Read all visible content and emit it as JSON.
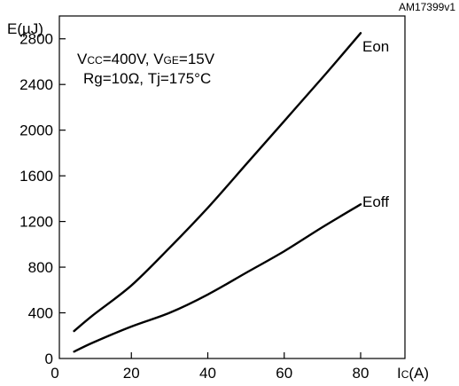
{
  "chart_data": {
    "type": "line",
    "code": "AM17399v1",
    "ylabel": "E(µJ)",
    "xlabel_main": "I",
    "xlabel_sub": "C",
    "xlabel_unit": "(A)",
    "annotation": {
      "line1": [
        {
          "text": "V",
          "sub": false
        },
        {
          "text": "CC",
          "sub": true
        },
        {
          "text": "=400V,  V",
          "sub": false
        },
        {
          "text": "GE",
          "sub": true
        },
        {
          "text": "=15V",
          "sub": false
        }
      ],
      "line2": "Rg=10Ω,  Tj=175°C"
    },
    "xlim": [
      0,
      90
    ],
    "ylim": [
      0,
      3000
    ],
    "xticks": [
      0,
      20,
      40,
      60,
      80
    ],
    "yticks": [
      0,
      400,
      800,
      1200,
      1600,
      2000,
      2400,
      2800
    ],
    "grid": false,
    "series": [
      {
        "name": "Eon",
        "x": [
          5,
          10,
          20,
          30,
          40,
          50,
          60,
          70,
          80
        ],
        "y": [
          240,
          380,
          640,
          970,
          1320,
          1700,
          2080,
          2460,
          2850
        ]
      },
      {
        "name": "Eoff",
        "x": [
          5,
          10,
          20,
          30,
          40,
          50,
          60,
          70,
          80
        ],
        "y": [
          60,
          140,
          280,
          400,
          560,
          750,
          940,
          1150,
          1350
        ]
      }
    ]
  }
}
